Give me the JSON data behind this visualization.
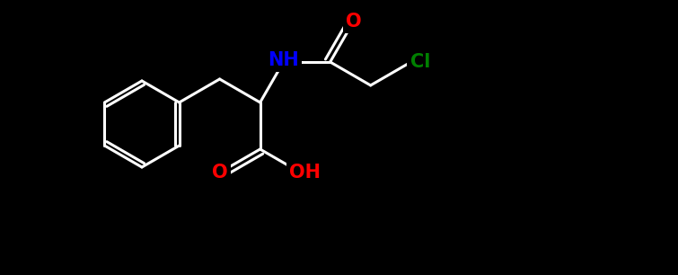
{
  "background_color": "#000000",
  "bond_color": "#ffffff",
  "bond_width": 2.2,
  "figsize": [
    7.55,
    3.06
  ],
  "dpi": 100,
  "atom_colors": {
    "N": "#0000ff",
    "O": "#ff0000",
    "Cl": "#008000"
  }
}
